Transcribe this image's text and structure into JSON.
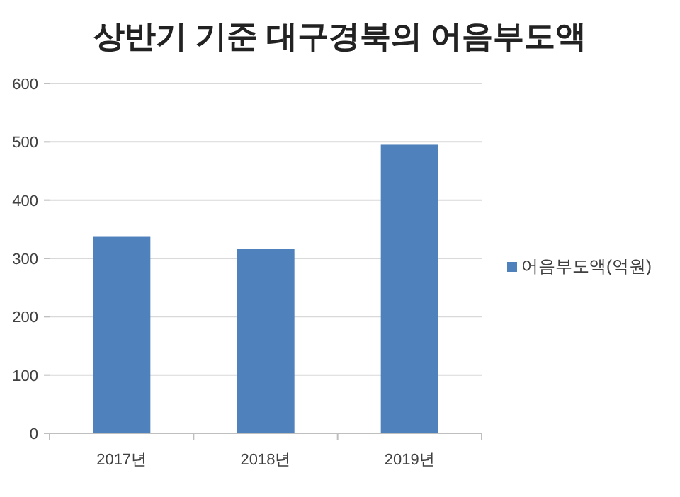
{
  "chart_data": {
    "type": "bar",
    "title": "상반기 기준 대구경북의 어음부도액",
    "categories": [
      "2017년",
      "2018년",
      "2019년"
    ],
    "series": [
      {
        "name": "어음부도액(억원)",
        "color": "#4f81bd",
        "values": [
          337,
          317,
          495
        ]
      }
    ],
    "ylim": [
      0,
      600
    ],
    "yticks": [
      0,
      100,
      200,
      300,
      400,
      500,
      600
    ],
    "grid": "y",
    "legend": "right"
  }
}
